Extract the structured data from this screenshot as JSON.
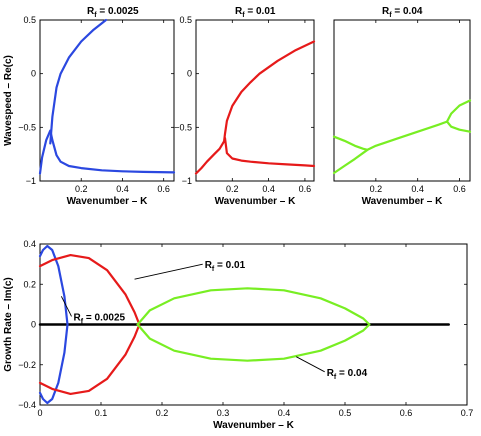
{
  "chart_data": [
    {
      "type": "line",
      "title_main": "R",
      "title_sub": "f",
      "title_rest": " = 0.0025",
      "xlabel": "Wavenumber – K",
      "ylabel": "Wavespeed – Re(c)",
      "xlim": [
        0,
        0.65
      ],
      "ylim": [
        -1,
        0.5
      ],
      "xticks": [
        0.2,
        0.4,
        0.6
      ],
      "xticklabels": [
        "0.2",
        "0.4",
        "0.6"
      ],
      "yticks": [
        -1,
        -0.5,
        0,
        0.5
      ],
      "yticklabels": [
        "−1",
        "−0.5",
        "0",
        "0.5"
      ],
      "series": [
        {
          "color": "#2b48e0",
          "x": [
            0.05,
            0.06,
            0.08,
            0.1,
            0.14,
            0.2,
            0.26,
            0.32
          ],
          "y": [
            -0.65,
            -0.4,
            -0.13,
            0.0,
            0.15,
            0.3,
            0.41,
            0.5
          ]
        },
        {
          "color": "#2b48e0",
          "x": [
            0.0,
            0.01,
            0.03,
            0.05,
            0.06,
            0.08,
            0.1,
            0.14,
            0.2,
            0.3,
            0.4,
            0.5,
            0.65
          ],
          "y": [
            -0.93,
            -0.78,
            -0.62,
            -0.53,
            -0.62,
            -0.76,
            -0.82,
            -0.86,
            -0.88,
            -0.9,
            -0.91,
            -0.915,
            -0.92
          ]
        }
      ]
    },
    {
      "type": "line",
      "title_main": "R",
      "title_sub": "f",
      "title_rest": " = 0.01",
      "xlabel": "Wavenumber – K",
      "ylabel": "",
      "xlim": [
        0,
        0.65
      ],
      "ylim": [
        -1,
        0.5
      ],
      "xticks": [
        0.2,
        0.4,
        0.6
      ],
      "xticklabels": [
        "0.2",
        "0.4",
        "0.6"
      ],
      "yticks": [
        -1,
        -0.5,
        0,
        0.5
      ],
      "yticklabels": [
        "−1",
        "−0.5",
        "0",
        "0.5"
      ],
      "series": [
        {
          "color": "#e61a1a",
          "x": [
            0.0,
            0.03,
            0.06,
            0.1,
            0.13,
            0.155,
            0.16,
            0.17,
            0.2,
            0.25,
            0.3,
            0.35,
            0.45,
            0.55,
            0.65
          ],
          "y": [
            -0.93,
            -0.88,
            -0.82,
            -0.75,
            -0.7,
            -0.63,
            -0.56,
            -0.44,
            -0.3,
            -0.17,
            -0.08,
            0.0,
            0.12,
            0.22,
            0.3
          ]
        },
        {
          "color": "#e61a1a",
          "x": [
            0.16,
            0.17,
            0.2,
            0.25,
            0.3,
            0.4,
            0.5,
            0.6,
            0.65
          ],
          "y": [
            -0.6,
            -0.74,
            -0.79,
            -0.81,
            -0.82,
            -0.835,
            -0.845,
            -0.855,
            -0.86
          ]
        }
      ]
    },
    {
      "type": "line",
      "title_main": "R",
      "title_sub": "f",
      "title_rest": " = 0.04",
      "xlabel": "Wavenumber – K",
      "ylabel": "",
      "xlim": [
        0,
        0.65
      ],
      "ylim": [
        -1.2,
        0.4
      ],
      "xticks": [
        0.2,
        0.4,
        0.6
      ],
      "xticklabels": [
        "0.2",
        "0.4",
        "0.6"
      ],
      "yticks": [],
      "yticklabels": [],
      "series": [
        {
          "color": "#78ee23",
          "x": [
            0.0,
            0.05,
            0.1,
            0.14,
            0.16,
            0.2,
            0.3,
            0.4,
            0.5,
            0.54,
            0.56,
            0.6,
            0.65
          ],
          "y": [
            -0.76,
            -0.8,
            -0.85,
            -0.88,
            -0.89,
            -0.85,
            -0.78,
            -0.71,
            -0.64,
            -0.61,
            -0.53,
            -0.45,
            -0.4
          ]
        },
        {
          "color": "#78ee23",
          "x": [
            0.0,
            0.05,
            0.1,
            0.14,
            0.16
          ],
          "y": [
            -1.12,
            -1.05,
            -0.98,
            -0.92,
            -0.89
          ]
        },
        {
          "color": "#78ee23",
          "x": [
            0.54,
            0.56,
            0.6,
            0.65
          ],
          "y": [
            -0.61,
            -0.66,
            -0.69,
            -0.71
          ]
        }
      ]
    },
    {
      "type": "line",
      "xlabel": "Wavenumber – K",
      "ylabel": "Growth Rate – Im(c)",
      "xlim": [
        0,
        0.7
      ],
      "ylim": [
        -0.4,
        0.4
      ],
      "xticks": [
        0,
        0.1,
        0.2,
        0.3,
        0.4,
        0.5,
        0.6,
        0.7
      ],
      "xticklabels": [
        "0",
        "0.1",
        "0.2",
        "0.3",
        "0.4",
        "0.5",
        "0.6",
        "0.7"
      ],
      "yticks": [
        -0.4,
        -0.2,
        0,
        0.2,
        0.4
      ],
      "yticklabels": [
        "−0.4",
        "−0.2",
        "0",
        "0.2",
        "0.4"
      ],
      "series": [
        {
          "color": "#000000",
          "x": [
            0,
            0.67
          ],
          "y": [
            0,
            0
          ],
          "width": 2.5
        },
        {
          "color": "#2b48e0",
          "x": [
            0.0,
            0.005,
            0.012,
            0.02,
            0.03,
            0.04,
            0.045,
            0.04,
            0.03,
            0.02,
            0.012,
            0.005,
            0.0
          ],
          "y": [
            0.34,
            0.37,
            0.39,
            0.37,
            0.29,
            0.14,
            0.0,
            -0.14,
            -0.29,
            -0.37,
            -0.39,
            -0.37,
            -0.34
          ]
        },
        {
          "color": "#e61a1a",
          "x": [
            0.0,
            0.02,
            0.05,
            0.08,
            0.11,
            0.14,
            0.155,
            0.163,
            0.155,
            0.14,
            0.11,
            0.08,
            0.05,
            0.02,
            0.0
          ],
          "y": [
            0.29,
            0.32,
            0.345,
            0.33,
            0.27,
            0.15,
            0.06,
            0.0,
            -0.06,
            -0.15,
            -0.27,
            -0.33,
            -0.345,
            -0.32,
            -0.29
          ]
        },
        {
          "color": "#78ee23",
          "x": [
            0.16,
            0.18,
            0.22,
            0.28,
            0.34,
            0.4,
            0.46,
            0.5,
            0.53,
            0.54,
            0.53,
            0.5,
            0.46,
            0.4,
            0.34,
            0.28,
            0.22,
            0.18,
            0.16
          ],
          "y": [
            0.0,
            0.07,
            0.13,
            0.17,
            0.18,
            0.17,
            0.13,
            0.08,
            0.03,
            0.0,
            -0.03,
            -0.08,
            -0.13,
            -0.17,
            -0.18,
            -0.17,
            -0.13,
            -0.07,
            0.0
          ]
        }
      ],
      "annotations": [
        {
          "main": "R",
          "sub": "f",
          "rest": " = 0.01",
          "x": 0.27,
          "y": 0.28,
          "ax": 0.155,
          "ay": 0.225
        },
        {
          "main": "R",
          "sub": "f",
          "rest": " = 0.0025",
          "x": 0.055,
          "y": 0.02,
          "ax": 0.035,
          "ay": 0.14
        },
        {
          "main": "R",
          "sub": "f",
          "rest": " = 0.04",
          "x": 0.47,
          "y": -0.255,
          "ax": 0.42,
          "ay": -0.16
        }
      ]
    }
  ]
}
